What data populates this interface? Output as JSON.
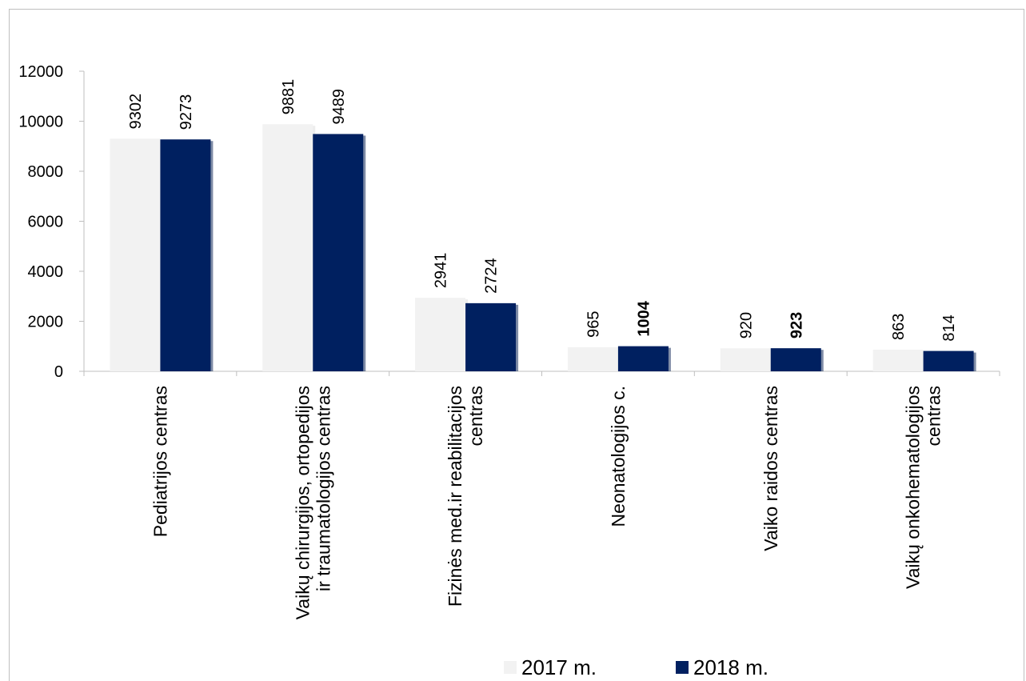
{
  "chart_data": {
    "type": "bar",
    "title": "",
    "xlabel": "",
    "ylabel": "",
    "ylim": [
      0,
      12000
    ],
    "yticks": [
      0,
      2000,
      4000,
      6000,
      8000,
      10000,
      12000
    ],
    "grid": false,
    "legend_position": "bottom",
    "categories": [
      [
        "Pediatrijos centras"
      ],
      [
        "Vaikų chirurgijos, ortopedijos",
        "ir traumatologijos centras"
      ],
      [
        "Fizinės med.ir reabilitacijos",
        "centras"
      ],
      [
        "Neonatologijos c."
      ],
      [
        "Vaiko raidos centras"
      ],
      [
        "Vaikų onkohematologijos",
        "centras"
      ]
    ],
    "series": [
      {
        "name": "2017 m.",
        "color": "#f2f2f2",
        "values": [
          9302,
          9881,
          2941,
          965,
          920,
          863
        ],
        "bold_labels": [
          false,
          false,
          false,
          false,
          false,
          false
        ]
      },
      {
        "name": "2018 m.",
        "color": "#002060",
        "values": [
          9273,
          9489,
          2724,
          1004,
          923,
          814
        ],
        "bold_labels": [
          false,
          false,
          false,
          true,
          true,
          false
        ]
      }
    ]
  }
}
